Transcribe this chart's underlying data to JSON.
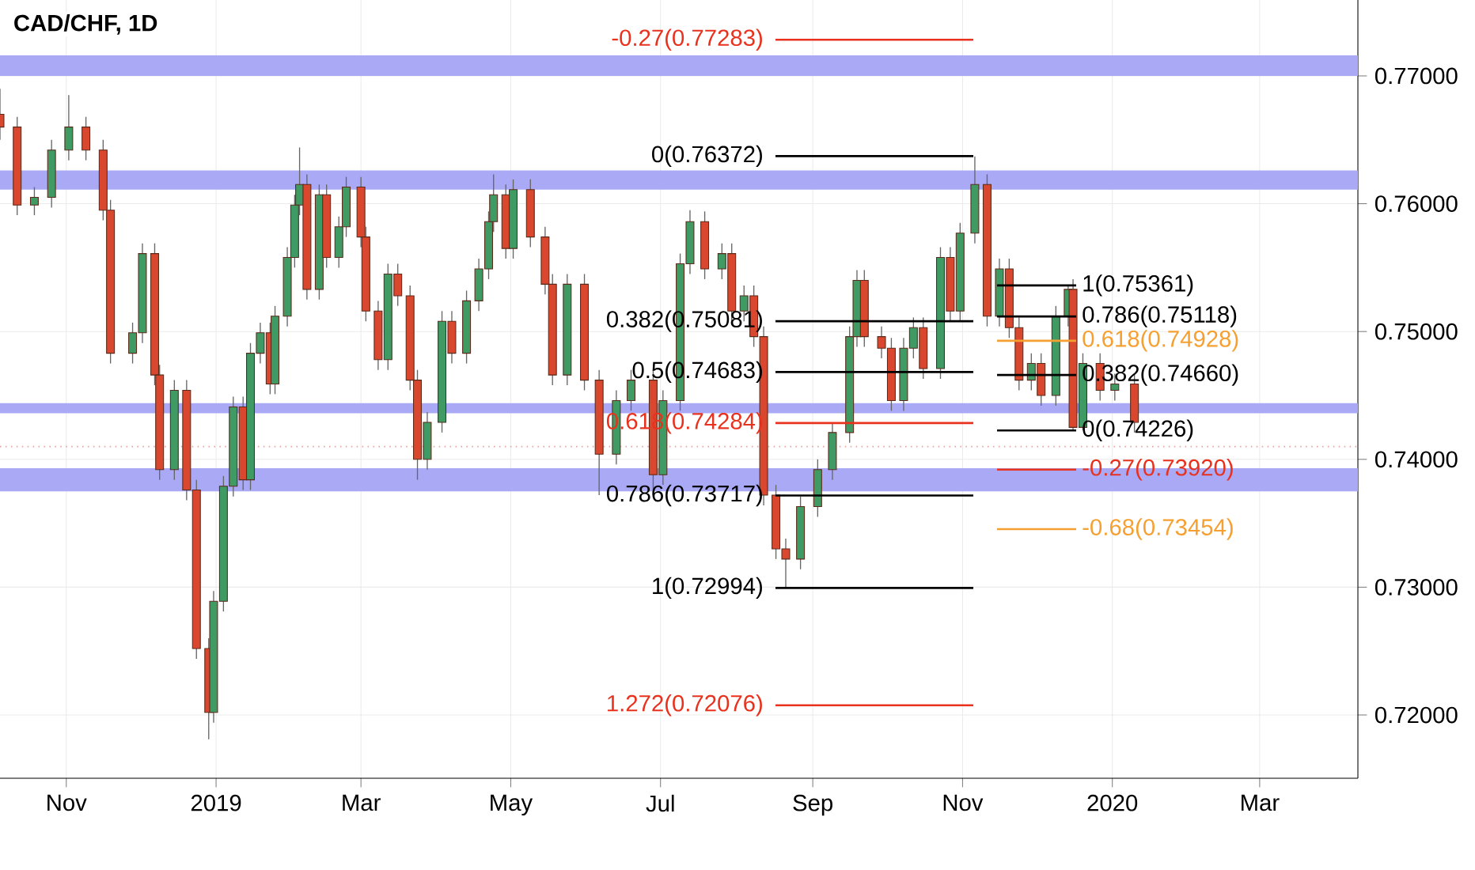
{
  "chart_data": {
    "type": "candlestick",
    "title": "CAD/CHF, 1D",
    "x": [
      "2018-10-05",
      "2018-10-12",
      "2018-10-19",
      "2018-10-26",
      "2018-11-02",
      "2018-11-09",
      "2018-11-16",
      "2018-11-19",
      "2018-11-28",
      "2018-12-02",
      "2018-12-07",
      "2018-12-09",
      "2018-12-15",
      "2018-12-20",
      "2018-12-24",
      "2018-12-29",
      "2018-12-31",
      "2019-01-04",
      "2019-01-08",
      "2019-01-12",
      "2019-01-15",
      "2019-01-19",
      "2019-01-23",
      "2019-01-25",
      "2019-01-30",
      "2019-02-02",
      "2019-02-04",
      "2019-02-07",
      "2019-02-12",
      "2019-02-15",
      "2019-02-20",
      "2019-02-23",
      "2019-03-01",
      "2019-03-03",
      "2019-03-08",
      "2019-03-12",
      "2019-03-16",
      "2019-03-21",
      "2019-03-24",
      "2019-03-28",
      "2019-04-03",
      "2019-04-07",
      "2019-04-13",
      "2019-04-18",
      "2019-04-22",
      "2019-04-24",
      "2019-04-29",
      "2019-05-02",
      "2019-05-09",
      "2019-05-15",
      "2019-05-18",
      "2019-05-24",
      "2019-05-31",
      "2019-06-06",
      "2019-06-13",
      "2019-06-19",
      "2019-06-28",
      "2019-07-02",
      "2019-07-09",
      "2019-07-13",
      "2019-07-19",
      "2019-07-26",
      "2019-07-30",
      "2019-08-04",
      "2019-08-08",
      "2019-08-12",
      "2019-08-17",
      "2019-08-21",
      "2019-08-27",
      "2019-09-03",
      "2019-09-09",
      "2019-09-16",
      "2019-09-19",
      "2019-09-22",
      "2019-09-29",
      "2019-10-03",
      "2019-10-08",
      "2019-10-12",
      "2019-10-16",
      "2019-10-23",
      "2019-10-27",
      "2019-10-31",
      "2019-11-06",
      "2019-11-11",
      "2019-11-16",
      "2019-11-20",
      "2019-11-24",
      "2019-11-29",
      "2019-12-03",
      "2019-12-09",
      "2019-12-14",
      "2019-12-16",
      "2019-12-20",
      "2019-12-27",
      "2020-01-02",
      "2020-01-10"
    ],
    "ohlc": [
      [
        0.767,
        0.769,
        0.765,
        0.766
      ],
      [
        0.766,
        0.7668,
        0.7591,
        0.7599
      ],
      [
        0.7599,
        0.7613,
        0.7591,
        0.7605
      ],
      [
        0.7605,
        0.765,
        0.7597,
        0.7642
      ],
      [
        0.7642,
        0.7685,
        0.7634,
        0.766
      ],
      [
        0.766,
        0.7668,
        0.7634,
        0.7642
      ],
      [
        0.7642,
        0.765,
        0.7587,
        0.7595
      ],
      [
        0.7595,
        0.7603,
        0.7475,
        0.7483
      ],
      [
        0.7483,
        0.7507,
        0.7475,
        0.7499
      ],
      [
        0.7499,
        0.7569,
        0.7491,
        0.7561
      ],
      [
        0.7561,
        0.7569,
        0.7458,
        0.7466
      ],
      [
        0.7466,
        0.7474,
        0.7384,
        0.7392
      ],
      [
        0.7392,
        0.7462,
        0.7384,
        0.7454
      ],
      [
        0.7454,
        0.7462,
        0.7368,
        0.7376
      ],
      [
        0.7376,
        0.7384,
        0.7244,
        0.7252
      ],
      [
        0.7252,
        0.726,
        0.7181,
        0.7202
      ],
      [
        0.7202,
        0.7297,
        0.7194,
        0.7289
      ],
      [
        0.7289,
        0.7387,
        0.7281,
        0.7379
      ],
      [
        0.7379,
        0.7449,
        0.7371,
        0.7441
      ],
      [
        0.7441,
        0.7449,
        0.7376,
        0.7384
      ],
      [
        0.7384,
        0.7491,
        0.7376,
        0.7483
      ],
      [
        0.7483,
        0.7507,
        0.7475,
        0.7499
      ],
      [
        0.7499,
        0.7507,
        0.7451,
        0.7459
      ],
      [
        0.7459,
        0.752,
        0.7451,
        0.7512
      ],
      [
        0.7512,
        0.7566,
        0.7504,
        0.7558
      ],
      [
        0.7558,
        0.7607,
        0.755,
        0.7599
      ],
      [
        0.7599,
        0.7644,
        0.7591,
        0.7615
      ],
      [
        0.7615,
        0.7623,
        0.7525,
        0.7533
      ],
      [
        0.7533,
        0.7615,
        0.7525,
        0.7607
      ],
      [
        0.7607,
        0.7615,
        0.755,
        0.7558
      ],
      [
        0.7558,
        0.759,
        0.755,
        0.7582
      ],
      [
        0.7582,
        0.7621,
        0.7574,
        0.7613
      ],
      [
        0.7613,
        0.7621,
        0.7566,
        0.7574
      ],
      [
        0.7574,
        0.7582,
        0.7508,
        0.7516
      ],
      [
        0.7516,
        0.7524,
        0.747,
        0.7478
      ],
      [
        0.7478,
        0.7553,
        0.747,
        0.7545
      ],
      [
        0.7545,
        0.7553,
        0.752,
        0.7528
      ],
      [
        0.7528,
        0.7536,
        0.7454,
        0.7462
      ],
      [
        0.7462,
        0.747,
        0.7384,
        0.74
      ],
      [
        0.74,
        0.7437,
        0.7392,
        0.7429
      ],
      [
        0.7429,
        0.7516,
        0.7421,
        0.7508
      ],
      [
        0.7508,
        0.7516,
        0.7475,
        0.7483
      ],
      [
        0.7483,
        0.7532,
        0.7475,
        0.7524
      ],
      [
        0.7524,
        0.7557,
        0.7516,
        0.7549
      ],
      [
        0.7549,
        0.7594,
        0.7541,
        0.7586
      ],
      [
        0.7586,
        0.7623,
        0.7578,
        0.7607
      ],
      [
        0.7607,
        0.7615,
        0.7557,
        0.7565
      ],
      [
        0.7565,
        0.7619,
        0.7557,
        0.7611
      ],
      [
        0.7611,
        0.7619,
        0.7566,
        0.7574
      ],
      [
        0.7574,
        0.7582,
        0.7529,
        0.7537
      ],
      [
        0.7537,
        0.7545,
        0.7458,
        0.7466
      ],
      [
        0.7466,
        0.7545,
        0.7458,
        0.7537
      ],
      [
        0.7537,
        0.7545,
        0.7454,
        0.7462
      ],
      [
        0.7462,
        0.747,
        0.7372,
        0.7404
      ],
      [
        0.7404,
        0.7454,
        0.7396,
        0.7446
      ],
      [
        0.7446,
        0.747,
        0.7438,
        0.7462
      ],
      [
        0.7462,
        0.747,
        0.7372,
        0.7388
      ],
      [
        0.7388,
        0.7454,
        0.738,
        0.7446
      ],
      [
        0.7446,
        0.7561,
        0.7438,
        0.7553
      ],
      [
        0.7553,
        0.7595,
        0.7545,
        0.7586
      ],
      [
        0.7586,
        0.7594,
        0.7541,
        0.7549
      ],
      [
        0.7549,
        0.7569,
        0.7541,
        0.7561
      ],
      [
        0.7561,
        0.7569,
        0.7508,
        0.7516
      ],
      [
        0.7516,
        0.7536,
        0.7508,
        0.7528
      ],
      [
        0.7528,
        0.7536,
        0.7488,
        0.7496
      ],
      [
        0.7496,
        0.7504,
        0.7364,
        0.7372
      ],
      [
        0.7372,
        0.738,
        0.7322,
        0.733
      ],
      [
        0.733,
        0.7338,
        0.7299,
        0.7322
      ],
      [
        0.7322,
        0.7371,
        0.7314,
        0.7363
      ],
      [
        0.7363,
        0.74,
        0.7355,
        0.7392
      ],
      [
        0.7392,
        0.7429,
        0.7384,
        0.7421
      ],
      [
        0.7421,
        0.7504,
        0.7413,
        0.7496
      ],
      [
        0.7496,
        0.7548,
        0.7488,
        0.754
      ],
      [
        0.754,
        0.7548,
        0.7488,
        0.7496
      ],
      [
        0.7496,
        0.7504,
        0.7479,
        0.7487
      ],
      [
        0.7487,
        0.7495,
        0.7438,
        0.7446
      ],
      [
        0.7446,
        0.7495,
        0.7438,
        0.7487
      ],
      [
        0.7487,
        0.7511,
        0.7479,
        0.7503
      ],
      [
        0.7503,
        0.7511,
        0.7463,
        0.7471
      ],
      [
        0.7471,
        0.7566,
        0.7463,
        0.7558
      ],
      [
        0.7558,
        0.7566,
        0.7508,
        0.7516
      ],
      [
        0.7516,
        0.7585,
        0.7508,
        0.7577
      ],
      [
        0.7577,
        0.7637,
        0.7569,
        0.7615
      ],
      [
        0.7615,
        0.7623,
        0.7504,
        0.7512
      ],
      [
        0.7512,
        0.7557,
        0.7504,
        0.7549
      ],
      [
        0.7549,
        0.7557,
        0.7495,
        0.7503
      ],
      [
        0.7503,
        0.7511,
        0.7454,
        0.7462
      ],
      [
        0.7462,
        0.7483,
        0.7454,
        0.7475
      ],
      [
        0.7475,
        0.7483,
        0.7442,
        0.745
      ],
      [
        0.745,
        0.752,
        0.7442,
        0.7512
      ],
      [
        0.7512,
        0.7536,
        0.7504,
        0.7533
      ],
      [
        0.7533,
        0.7541,
        0.7423,
        0.7425
      ],
      [
        0.7425,
        0.7483,
        0.7423,
        0.7475
      ],
      [
        0.7475,
        0.7483,
        0.7446,
        0.7454
      ],
      [
        0.7454,
        0.7467,
        0.7446,
        0.7459
      ],
      [
        0.7459,
        0.7467,
        0.7421,
        0.7429
      ]
    ],
    "xlim": [
      "2018-10-05",
      "2020-04-10"
    ],
    "xticks": [
      {
        "value": "2018-11-01",
        "label": "Nov"
      },
      {
        "value": "2019-01-01",
        "label": "2019"
      },
      {
        "value": "2019-03-01",
        "label": "Mar"
      },
      {
        "value": "2019-05-01",
        "label": "May"
      },
      {
        "value": "2019-07-01",
        "label": "Jul"
      },
      {
        "value": "2019-09-01",
        "label": "Sep"
      },
      {
        "value": "2019-11-01",
        "label": "Nov"
      },
      {
        "value": "2020-01-01",
        "label": "2020"
      },
      {
        "value": "2020-03-01",
        "label": "Mar"
      }
    ],
    "ylim": [
      0.71505,
      0.77594
    ],
    "yticks": [
      {
        "value": 0.72,
        "label": "0.72000"
      },
      {
        "value": 0.73,
        "label": "0.73000"
      },
      {
        "value": 0.74,
        "label": "0.74000"
      },
      {
        "value": 0.75,
        "label": "0.75000"
      },
      {
        "value": 0.76,
        "label": "0.76000"
      },
      {
        "value": 0.77,
        "label": "0.77000"
      }
    ],
    "grid": true,
    "bands": [
      {
        "axis": "y",
        "from": 0.77,
        "to": 0.7716,
        "color": "#a9a9f6"
      },
      {
        "axis": "y",
        "from": 0.7611,
        "to": 0.7626,
        "color": "#a9a9f6"
      },
      {
        "axis": "y",
        "from": 0.7375,
        "to": 0.7393,
        "color": "#a9a9f6"
      },
      {
        "axis": "y",
        "from": 0.7436,
        "to": 0.7444,
        "color": "#a9a9f6"
      }
    ],
    "ref_lines": [
      {
        "axis": "y",
        "value": 0.741,
        "color": "#e8a0a0",
        "line_style": "dotted"
      },
      {
        "axis": "y",
        "value": 0.77283,
        "label": "-0.27(0.77283)",
        "color": "#e8321e"
      },
      {
        "axis": "y",
        "value": 0.76372,
        "label": "0(0.76372)",
        "color": "#000000"
      },
      {
        "axis": "y",
        "value": 0.75081,
        "label": "0.382(0.75081)",
        "color": "#000000"
      },
      {
        "axis": "y",
        "value": 0.74683,
        "label": "0.5(0.74683)",
        "color": "#000000"
      },
      {
        "axis": "y",
        "value": 0.74284,
        "label": "0.618(0.74284)",
        "color": "#e8321e"
      },
      {
        "axis": "y",
        "value": 0.73717,
        "label": "0.786(0.73717)",
        "color": "#000000"
      },
      {
        "axis": "y",
        "value": 0.72994,
        "label": "1(0.72994)",
        "color": "#000000"
      },
      {
        "axis": "y",
        "value": 0.72076,
        "label": "1.272(0.72076)",
        "color": "#e8321e"
      },
      {
        "axis": "y",
        "value": 0.75361,
        "label": "1(0.75361)",
        "color": "#000000"
      },
      {
        "axis": "y",
        "value": 0.75118,
        "label": "0.786(0.75118)",
        "color": "#000000"
      },
      {
        "axis": "y",
        "value": 0.74928,
        "label": "0.618(0.74928)",
        "color": "#f5a030"
      },
      {
        "axis": "y",
        "value": 0.7466,
        "label": "0.382(0.74660)",
        "color": "#000000"
      },
      {
        "axis": "y",
        "value": 0.74226,
        "label": "0(0.74226)",
        "color": "#000000"
      },
      {
        "axis": "y",
        "value": 0.7392,
        "label": "-0.27(0.73920)",
        "color": "#e8321e"
      },
      {
        "axis": "y",
        "value": 0.73454,
        "label": "-0.68(0.73454)",
        "color": "#f5a030"
      }
    ]
  }
}
